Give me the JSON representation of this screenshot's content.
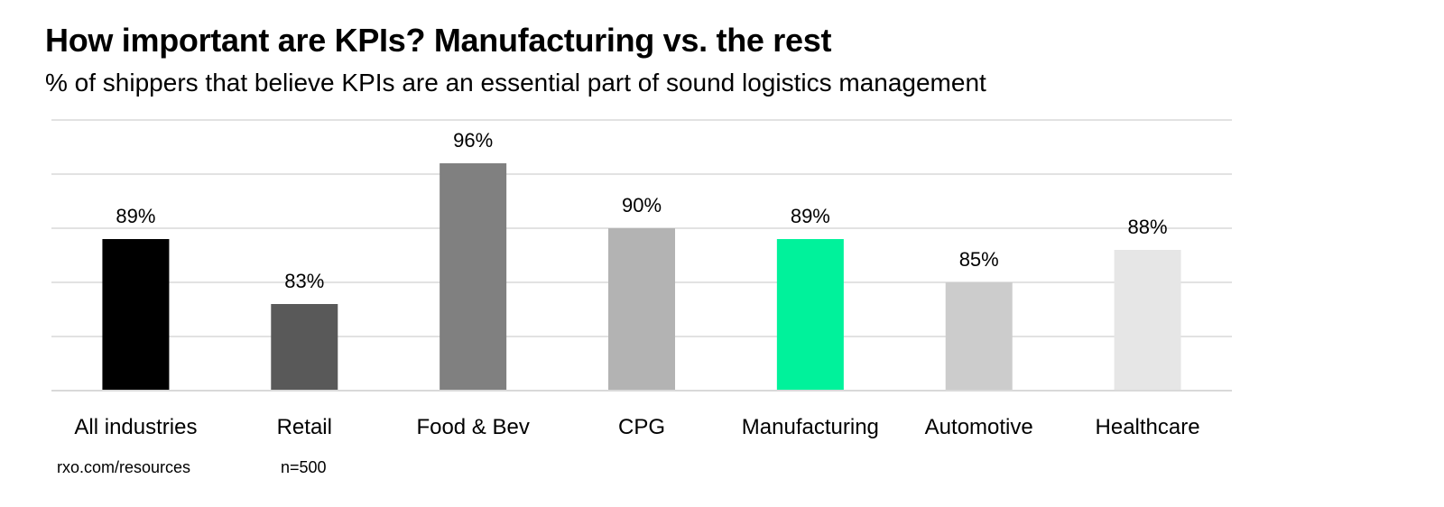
{
  "chart_data": {
    "type": "bar",
    "title": "How important are KPIs? Manufacturing vs. the rest",
    "subtitle": "% of shippers that believe KPIs are an essential part of sound logistics management",
    "categories": [
      "All industries",
      "Retail",
      "Food & Bev",
      "CPG",
      "Manufacturing",
      "Automotive",
      "Healthcare"
    ],
    "values": [
      89,
      83,
      96,
      90,
      89,
      85,
      88
    ],
    "data_labels": [
      "89%",
      "83%",
      "96%",
      "90%",
      "89%",
      "85%",
      "88%"
    ],
    "colors": [
      "#000000",
      "#595959",
      "#808080",
      "#b3b3b3",
      "#00f29b",
      "#cccccc",
      "#e6e6e6"
    ],
    "ylim": [
      75,
      100
    ],
    "grid": true,
    "xlabel": "",
    "ylabel": ""
  },
  "footer": {
    "source": "rxo.com/resources",
    "sample": "n=500"
  }
}
